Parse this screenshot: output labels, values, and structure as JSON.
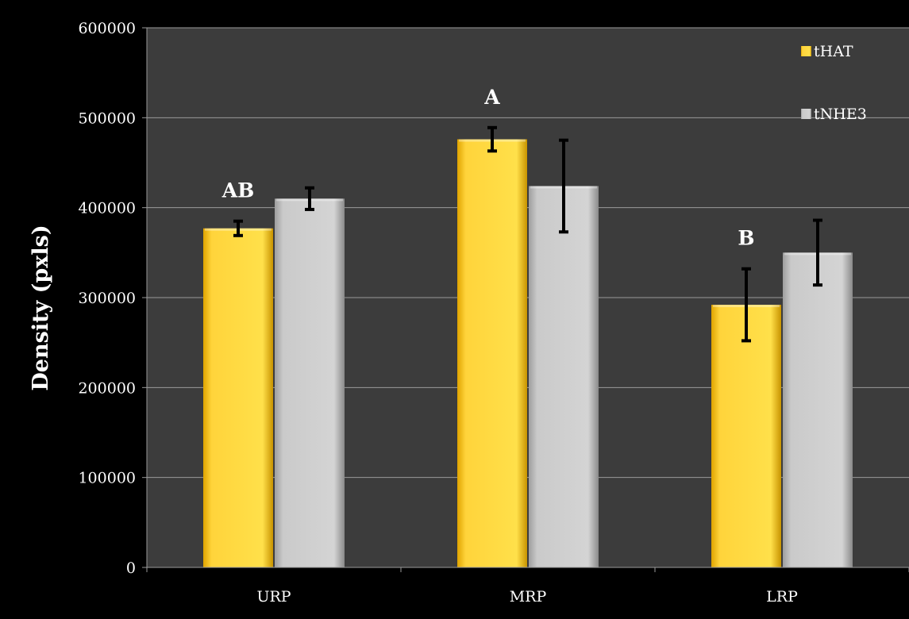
{
  "chart_data": {
    "type": "bar",
    "ylabel": "Density (pxls)",
    "xlabel": "",
    "ylim": [
      0,
      600000
    ],
    "yticks": [
      0,
      100000,
      200000,
      300000,
      400000,
      500000,
      600000
    ],
    "ytick_labels": [
      "0",
      "100000",
      "200000",
      "300000",
      "400000",
      "500000",
      "600000"
    ],
    "categories": [
      "URP",
      "MRP",
      "LRP"
    ],
    "series": [
      {
        "name": "tHAT",
        "color": "#FFD43B",
        "values": [
          377000,
          476000,
          292000
        ],
        "errors": [
          8000,
          13000,
          40000
        ]
      },
      {
        "name": "tNHE3",
        "color": "#C8C8C8",
        "values": [
          410000,
          424000,
          350000
        ],
        "errors": [
          12000,
          51000,
          36000
        ]
      }
    ],
    "annotations": [
      "AB",
      "A",
      "B"
    ],
    "legend_position": "top-right",
    "grid": true,
    "colors": {
      "page_background": "#000000",
      "plot_background": "#3C3C3C",
      "gridline": "#9A9A9A",
      "axis": "#9A9A9A",
      "text": "#FFFFFF",
      "error_bar": "#000000"
    }
  }
}
